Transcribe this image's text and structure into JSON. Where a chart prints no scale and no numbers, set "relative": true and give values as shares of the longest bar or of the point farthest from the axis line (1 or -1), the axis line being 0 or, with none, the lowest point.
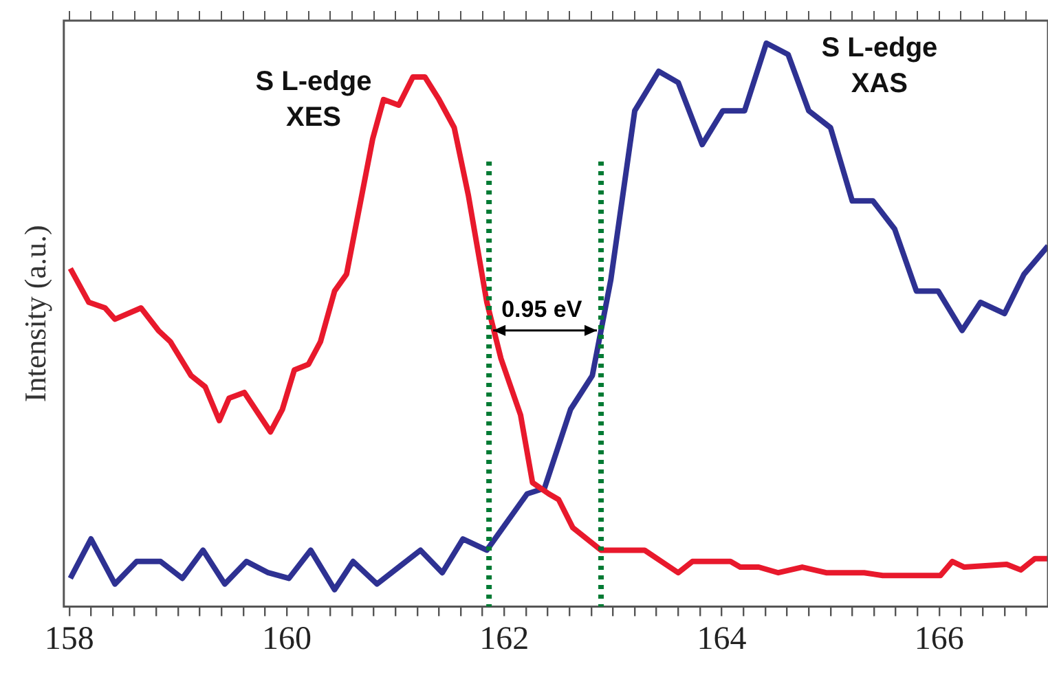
{
  "chart_data": {
    "type": "line",
    "relative": true,
    "ylabel": "Intensity (a.u.)",
    "xlim": [
      157.95,
      167.0
    ],
    "xticks": [
      158,
      {
        "value": 158.2,
        "label": null
      },
      {
        "value": 158.4,
        "label": null
      },
      {
        "value": 158.6,
        "label": null
      },
      {
        "value": 158.8,
        "label": null
      },
      {
        "value": 159,
        "label": null
      },
      {
        "value": 159.2,
        "label": null
      },
      {
        "value": 159.4,
        "label": null
      },
      {
        "value": 159.6,
        "label": null
      },
      {
        "value": 159.8,
        "label": null
      },
      160,
      {
        "value": 160.2,
        "label": null
      },
      {
        "value": 160.4,
        "label": null
      },
      {
        "value": 160.6,
        "label": null
      },
      {
        "value": 160.8,
        "label": null
      },
      {
        "value": 161,
        "label": null
      },
      {
        "value": 161.2,
        "label": null
      },
      {
        "value": 161.4,
        "label": null
      },
      {
        "value": 161.6,
        "label": null
      },
      {
        "value": 161.8,
        "label": null
      },
      162,
      {
        "value": 162.2,
        "label": null
      },
      {
        "value": 162.4,
        "label": null
      },
      {
        "value": 162.6,
        "label": null
      },
      {
        "value": 162.8,
        "label": null
      },
      {
        "value": 163,
        "label": null
      },
      {
        "value": 163.2,
        "label": null
      },
      {
        "value": 163.4,
        "label": null
      },
      {
        "value": 163.6,
        "label": null
      },
      {
        "value": 163.8,
        "label": null
      },
      164,
      {
        "value": 164.2,
        "label": null
      },
      {
        "value": 164.4,
        "label": null
      },
      {
        "value": 164.6,
        "label": null
      },
      {
        "value": 164.8,
        "label": null
      },
      {
        "value": 165,
        "label": null
      },
      {
        "value": 165.2,
        "label": null
      },
      {
        "value": 165.4,
        "label": null
      },
      {
        "value": 165.6,
        "label": null
      },
      {
        "value": 165.8,
        "label": null
      },
      166,
      {
        "value": 166.2,
        "label": null
      },
      {
        "value": 166.4,
        "label": null
      },
      {
        "value": 166.6,
        "label": null
      },
      {
        "value": 166.8,
        "label": null
      }
    ],
    "series": [
      {
        "name": "S L-edge XES",
        "color": "#e8192c",
        "x": [
          158.01,
          158.18,
          158.33,
          158.42,
          158.66,
          158.82,
          158.93,
          159.12,
          159.25,
          159.38,
          159.47,
          159.61,
          159.85,
          159.96,
          160.07,
          160.2,
          160.31,
          160.44,
          160.55,
          160.79,
          160.89,
          161.03,
          161.16,
          161.27,
          161.4,
          161.54,
          161.67,
          161.84,
          161.97,
          162.15,
          162.26,
          162.41,
          162.5,
          162.63,
          162.89,
          163.11,
          163.29,
          163.6,
          163.73,
          164.08,
          164.17,
          164.34,
          164.52,
          164.74,
          164.96,
          165.31,
          165.48,
          166.01,
          166.12,
          166.23,
          166.62,
          166.75,
          166.88,
          167.0
        ],
        "values": [
          0.6,
          0.54,
          0.53,
          0.51,
          0.53,
          0.49,
          0.47,
          0.41,
          0.39,
          0.33,
          0.37,
          0.38,
          0.31,
          0.35,
          0.42,
          0.43,
          0.47,
          0.56,
          0.59,
          0.83,
          0.9,
          0.89,
          0.94,
          0.94,
          0.9,
          0.85,
          0.73,
          0.54,
          0.44,
          0.34,
          0.22,
          0.2,
          0.19,
          0.14,
          0.1,
          0.1,
          0.1,
          0.06,
          0.08,
          0.08,
          0.07,
          0.07,
          0.06,
          0.07,
          0.06,
          0.06,
          0.055,
          0.055,
          0.08,
          0.07,
          0.075,
          0.065,
          0.085,
          0.085
        ]
      },
      {
        "name": "S L-edge XAS",
        "color": "#2e3192",
        "x": [
          158.01,
          158.2,
          158.42,
          158.62,
          158.84,
          159.04,
          159.23,
          159.43,
          159.63,
          159.83,
          160.02,
          160.22,
          160.44,
          160.61,
          160.83,
          161.03,
          161.23,
          161.43,
          161.62,
          161.84,
          162.21,
          162.37,
          162.61,
          162.81,
          162.89,
          162.98,
          163.2,
          163.42,
          163.6,
          163.82,
          164.01,
          164.21,
          164.41,
          164.61,
          164.8,
          165.0,
          165.2,
          165.39,
          165.59,
          165.79,
          165.99,
          166.21,
          166.38,
          166.6,
          166.78,
          167.0
        ],
        "values": [
          0.05,
          0.12,
          0.04,
          0.08,
          0.08,
          0.05,
          0.1,
          0.04,
          0.08,
          0.06,
          0.05,
          0.1,
          0.03,
          0.08,
          0.04,
          0.07,
          0.1,
          0.06,
          0.12,
          0.1,
          0.2,
          0.21,
          0.35,
          0.41,
          0.49,
          0.58,
          0.88,
          0.95,
          0.93,
          0.82,
          0.88,
          0.88,
          1.0,
          0.98,
          0.88,
          0.85,
          0.72,
          0.72,
          0.67,
          0.56,
          0.56,
          0.49,
          0.54,
          0.52,
          0.59,
          0.64
        ]
      }
    ],
    "ref_lines": [
      {
        "axis": "x",
        "value": 161.86,
        "color": "#007a33",
        "line_style": "dotted"
      },
      {
        "axis": "x",
        "value": 162.89,
        "color": "#007a33",
        "line_style": "dotted"
      }
    ],
    "annotations": [
      "0.95 eV"
    ],
    "legend": false,
    "grid": false,
    "marker": "none",
    "line_style": "solid"
  }
}
